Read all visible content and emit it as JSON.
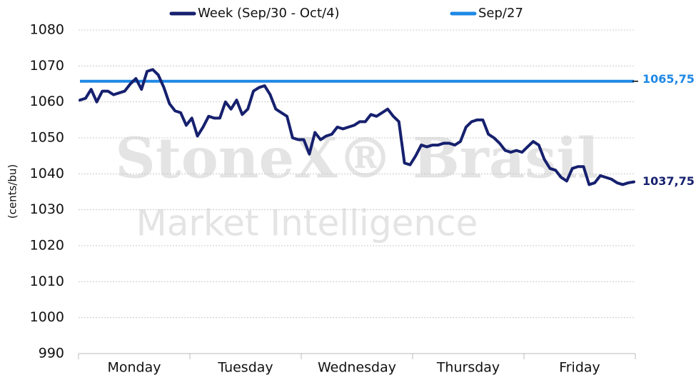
{
  "chart_data": {
    "type": "line",
    "watermark": [
      "StoneX® Brasil",
      "Market Intelligence"
    ],
    "y_label": "(cents/bu)",
    "categories": [
      null,
      null,
      null,
      null,
      null,
      null,
      null,
      null,
      null,
      null,
      "Monday",
      null,
      null,
      null,
      null,
      null,
      null,
      null,
      null,
      null,
      null,
      null,
      null,
      null,
      null,
      null,
      null,
      null,
      null,
      null,
      "Tuesday",
      null,
      null,
      null,
      null,
      null,
      null,
      null,
      null,
      null,
      null,
      null,
      null,
      null,
      null,
      null,
      null,
      null,
      null,
      null,
      "Wednesday",
      null,
      null,
      null,
      null,
      null,
      null,
      null,
      null,
      null,
      null,
      null,
      null,
      null,
      null,
      null,
      null,
      null,
      null,
      null,
      "Thursday",
      null,
      null,
      null,
      null,
      null,
      null,
      null,
      null,
      null,
      null,
      null,
      null,
      null,
      null,
      null,
      null,
      null,
      null,
      null,
      "Friday",
      null,
      null,
      null,
      null,
      null,
      null,
      null,
      null,
      null
    ],
    "series": [
      {
        "name": "Week (Sep/30 - Oct/4)",
        "color": "#16206e",
        "values": [
          1060.5,
          1061,
          1063.5,
          1060,
          1063,
          1063,
          1062,
          1062.5,
          1063,
          1065,
          1066.5,
          1063.5,
          1068.5,
          1069,
          1067.5,
          1064,
          1059.5,
          1057.5,
          1057,
          1053.5,
          1055.5,
          1050.5,
          1053,
          1056,
          1055.5,
          1055.5,
          1060,
          1058,
          1060.5,
          1056.5,
          1058,
          1063,
          1064,
          1064.5,
          1062,
          1058,
          1057,
          1056,
          1050,
          1049.5,
          1049.5,
          1045.5,
          1051.5,
          1049.5,
          1050.5,
          1051,
          1053,
          1052.5,
          1053,
          1053.5,
          1054.5,
          1054.5,
          1056.5,
          1056,
          1057,
          1058,
          1056,
          1054.5,
          1043,
          1042.5,
          1045,
          1048,
          1047.5,
          1048,
          1048,
          1048.5,
          1048.5,
          1048,
          1049,
          1053,
          1054.5,
          1055,
          1055,
          1051,
          1050,
          1048.5,
          1046.5,
          1046,
          1046.5,
          1046,
          1047.5,
          1049,
          1048,
          1044,
          1041.5,
          1041,
          1039,
          1038,
          1041.5,
          1042,
          1042,
          1037,
          1037.5,
          1039.5,
          1039,
          1038.5,
          1037.5,
          1037,
          1037.5,
          1037.75
        ],
        "end_label": "1037,75"
      },
      {
        "name": "Sep/27",
        "color": "#1e88e5",
        "value": 1065.75,
        "value_label": "1065,75"
      }
    ],
    "ylim": [
      990,
      1080
    ],
    "yticks": [
      990,
      1000,
      1010,
      1020,
      1030,
      1040,
      1050,
      1060,
      1070,
      1080
    ],
    "grid": true
  }
}
